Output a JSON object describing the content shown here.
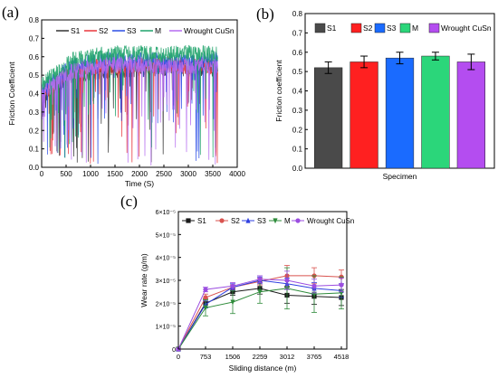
{
  "panels": {
    "a": {
      "label": "(a)"
    },
    "b": {
      "label": "(b)"
    },
    "c": {
      "label": "(c)"
    }
  },
  "chart_data": [
    {
      "type": "line",
      "panel": "a",
      "xlabel": "Time (S)",
      "ylabel": "Friction Coefficient",
      "xlim": [
        0,
        4000
      ],
      "ylim": [
        0.0,
        0.8
      ],
      "xticks": [
        "0",
        "500",
        "1000",
        "1500",
        "2000",
        "2500",
        "3000",
        "3500",
        "4000"
      ],
      "yticks": [
        "0.0",
        "0.1",
        "0.2",
        "0.3",
        "0.4",
        "0.5",
        "0.6",
        "0.7",
        "0.8"
      ],
      "legend_position": "top",
      "series": [
        {
          "name": "S1",
          "color": "#333333",
          "x_end": 3600,
          "base": [
            0.38,
            0.5,
            0.52,
            0.53,
            0.54,
            0.53,
            0.54
          ],
          "seed": 3
        },
        {
          "name": "S2",
          "color": "#e8363b",
          "x_end": 3600,
          "base": [
            0.4,
            0.52,
            0.55,
            0.55,
            0.56,
            0.55,
            0.55
          ],
          "seed": 7
        },
        {
          "name": "S3",
          "color": "#2b4ee6",
          "x_end": 3600,
          "base": [
            0.42,
            0.55,
            0.58,
            0.58,
            0.58,
            0.57,
            0.58
          ],
          "seed": 11
        },
        {
          "name": "M",
          "color": "#1fa36a",
          "x_end": 3600,
          "base": [
            0.45,
            0.58,
            0.61,
            0.62,
            0.61,
            0.62,
            0.61
          ],
          "seed": 17
        },
        {
          "name": "Wrought CuSn",
          "color": "#b56bf0",
          "x_end": 3600,
          "base": [
            0.4,
            0.52,
            0.55,
            0.56,
            0.55,
            0.55,
            0.55
          ],
          "seed": 23
        }
      ]
    },
    {
      "type": "bar",
      "panel": "b",
      "xlabel": "Specimen",
      "ylabel": "Friction coefficient",
      "ylim": [
        0.0,
        0.8
      ],
      "yticks": [
        "0.0",
        "0.1",
        "0.2",
        "0.3",
        "0.4",
        "0.5",
        "0.6",
        "0.7",
        "0.8"
      ],
      "legend_position": "top",
      "categories": [
        "S1",
        "S2",
        "S3",
        "M",
        "Wrought CuSn"
      ],
      "values": [
        0.52,
        0.55,
        0.57,
        0.58,
        0.55
      ],
      "errors": [
        0.03,
        0.03,
        0.03,
        0.02,
        0.04
      ],
      "colors": [
        "#4a4a4a",
        "#ff2020",
        "#1a6bff",
        "#2bd67a",
        "#b44df0"
      ]
    },
    {
      "type": "line",
      "panel": "c",
      "xlabel": "Sliding distance (m)",
      "ylabel": "Wear rate (g/m)",
      "x": [
        0,
        753,
        1506,
        2259,
        3012,
        3765,
        4518
      ],
      "xticks": [
        "0",
        "753",
        "1506",
        "2259",
        "3012",
        "3765",
        "4518"
      ],
      "xlim": [
        0,
        4518
      ],
      "ylim": [
        0,
        6e-05
      ],
      "yticks": [
        "0",
        "1×10⁻⁵",
        "2×10⁻⁵",
        "3×10⁻⁵",
        "4×10⁻⁵",
        "5×10⁻⁵",
        "6×10⁻⁵"
      ],
      "legend_position": "top-left",
      "series": [
        {
          "name": "S1",
          "color": "#1a1a1a",
          "marker": "square",
          "values": [
            0,
            2e-05,
            2.5e-05,
            2.65e-05,
            2.35e-05,
            2.3e-05,
            2.25e-05
          ],
          "errors": [
            0,
            2e-06,
            1.5e-06,
            2.5e-06,
            3.5e-06,
            3.5e-06,
            3.5e-06
          ]
        },
        {
          "name": "S2",
          "color": "#d9534f",
          "marker": "circle",
          "values": [
            0,
            2.25e-05,
            2.7e-05,
            2.95e-05,
            3.2e-05,
            3.2e-05,
            3.15e-05
          ],
          "errors": [
            0,
            1.5e-06,
            1e-06,
            1.5e-06,
            4.5e-06,
            3.5e-06,
            3e-06
          ]
        },
        {
          "name": "S3",
          "color": "#2f3fe0",
          "marker": "triangle",
          "values": [
            0,
            1.95e-05,
            2.7e-05,
            3e-05,
            2.85e-05,
            2.65e-05,
            2.55e-05
          ],
          "errors": [
            0,
            1.5e-06,
            1.5e-06,
            1.5e-06,
            2.5e-06,
            2.5e-06,
            3e-06
          ]
        },
        {
          "name": "M",
          "color": "#2e8b3a",
          "marker": "triangle-down",
          "values": [
            0,
            1.8e-05,
            2.05e-05,
            2.5e-05,
            2.65e-05,
            2.4e-05,
            2.45e-05
          ],
          "errors": [
            0,
            3.5e-06,
            5e-06,
            5e-06,
            9e-06,
            8e-06,
            7e-06
          ]
        },
        {
          "name": "Wrought CuSn",
          "color": "#9b4de0",
          "marker": "circle",
          "values": [
            0,
            2.6e-05,
            2.75e-05,
            3.05e-05,
            3e-05,
            2.75e-05,
            2.8e-05
          ],
          "errors": [
            0,
            1e-06,
            1.5e-06,
            1.5e-06,
            4e-06,
            3e-06,
            3e-06
          ]
        }
      ]
    }
  ]
}
